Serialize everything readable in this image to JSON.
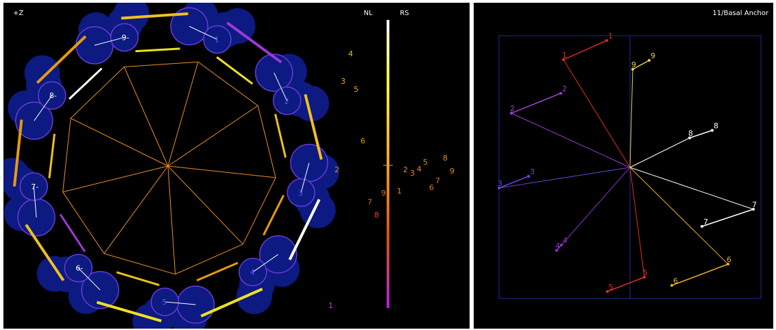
{
  "left_panel": {
    "view_label": "+Z",
    "scale_labels": {
      "left": "NL",
      "right": "RS"
    },
    "ring": {
      "sugars": [
        {
          "label": "1",
          "text_color": "#5a5aff"
        },
        {
          "label": "2",
          "text_color": "#5a5aff"
        },
        {
          "label": "3",
          "text_color": "#5a5aff"
        },
        {
          "label": "4",
          "text_color": "#5a5aff"
        },
        {
          "label": "5",
          "text_color": "#5a5aff"
        },
        {
          "label": "6-",
          "text_color": "#ffffff"
        },
        {
          "label": "7-",
          "text_color": "#ffffff"
        },
        {
          "label": "8-",
          "text_color": "#ffffff"
        },
        {
          "label": "9-",
          "text_color": "#ffffff"
        }
      ]
    },
    "nl_numbers": [
      {
        "text": "4",
        "color": "#e8c020"
      },
      {
        "text": "3",
        "color": "#e8b020"
      },
      {
        "text": "5",
        "color": "#e8b020"
      },
      {
        "text": "6",
        "color": "#e89a10"
      },
      {
        "text": "2",
        "color": "#e88a10"
      },
      {
        "text": "9",
        "color": "#e07010"
      },
      {
        "text": "7",
        "color": "#e06010"
      },
      {
        "text": "8",
        "color": "#e05010"
      },
      {
        "text": "1",
        "color": "#c040d0"
      }
    ],
    "rs_numbers": [
      {
        "text": "8",
        "color": "#e88a10"
      },
      {
        "text": "5",
        "color": "#e88a10"
      },
      {
        "text": "9",
        "color": "#e88a10"
      },
      {
        "text": "2",
        "color": "#e88a10"
      },
      {
        "text": "3",
        "color": "#e88a10"
      },
      {
        "text": "4",
        "color": "#e88a10"
      },
      {
        "text": "7",
        "color": "#e07a10"
      },
      {
        "text": "6",
        "color": "#e07a10"
      },
      {
        "text": "1",
        "color": "#e09010"
      }
    ]
  },
  "right_panel": {
    "title": "11/Basal Anchor",
    "anchors": [
      {
        "inner": "1",
        "outer": "1",
        "color": "#e03020"
      },
      {
        "inner": "9",
        "outer": "9",
        "color": "#e8d040"
      },
      {
        "inner": "2",
        "outer": "2",
        "color": "#9a40d8"
      },
      {
        "inner": "8",
        "outer": "8",
        "color": "#ffffff"
      },
      {
        "inner": "3",
        "outer": "3",
        "color": "#7040e0"
      },
      {
        "inner": "7",
        "outer": "7",
        "color": "#ffffff"
      },
      {
        "inner": "4",
        "outer": "4",
        "color": "#9030c8"
      },
      {
        "inner": "6",
        "outer": "6",
        "color": "#e8b020"
      },
      {
        "inner": "5",
        "outer": "5",
        "color": "#e03020"
      }
    ]
  },
  "colors": {
    "background": "#000000",
    "sugar_fill": "#0c1a82",
    "sugar_outline": "#6a3ad8",
    "polygon": "#e89020",
    "box": "#1a2a9a"
  }
}
